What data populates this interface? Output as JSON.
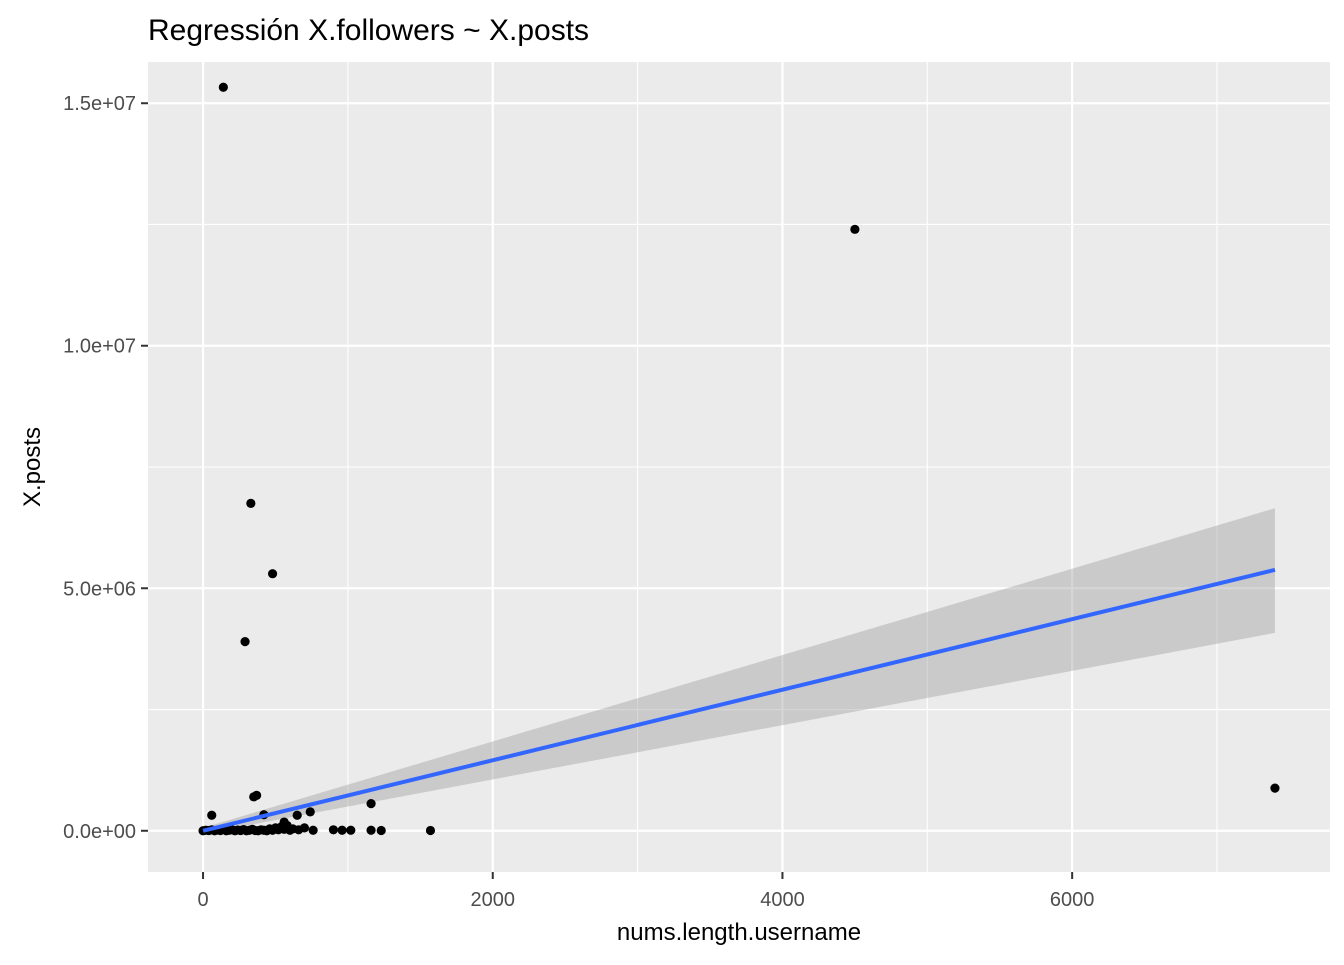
{
  "chart_data": {
    "type": "scatter",
    "title": "Regressión X.followers ~ X.posts",
    "xlabel": "nums.length.username",
    "ylabel": "X.posts",
    "xlim": [
      -380,
      7780
    ],
    "ylim": [
      -850000,
      15850000
    ],
    "x_ticks": [
      0,
      2000,
      4000,
      6000
    ],
    "x_tick_labels": [
      "0",
      "2000",
      "4000",
      "6000"
    ],
    "y_ticks": [
      0,
      5000000,
      10000000,
      15000000
    ],
    "y_tick_labels": [
      "0.0e+00",
      "5.0e+06",
      "1.0e+07",
      "1.5e+07"
    ],
    "grid": true,
    "points": [
      {
        "x": 140,
        "y": 15330000
      },
      {
        "x": 4500,
        "y": 12400000
      },
      {
        "x": 330,
        "y": 6750000
      },
      {
        "x": 480,
        "y": 5300000
      },
      {
        "x": 290,
        "y": 3900000
      },
      {
        "x": 7400,
        "y": 880000
      },
      {
        "x": 350,
        "y": 700000
      },
      {
        "x": 370,
        "y": 730000
      },
      {
        "x": 1160,
        "y": 560000
      },
      {
        "x": 60,
        "y": 320000
      },
      {
        "x": 420,
        "y": 330000
      },
      {
        "x": 650,
        "y": 320000
      },
      {
        "x": 740,
        "y": 390000
      },
      {
        "x": 560,
        "y": 180000
      },
      {
        "x": 0,
        "y": 0
      },
      {
        "x": 20,
        "y": 10000
      },
      {
        "x": 40,
        "y": 5000
      },
      {
        "x": 60,
        "y": 20000
      },
      {
        "x": 80,
        "y": 0
      },
      {
        "x": 100,
        "y": 15000
      },
      {
        "x": 120,
        "y": 5000
      },
      {
        "x": 140,
        "y": 30000
      },
      {
        "x": 160,
        "y": 0
      },
      {
        "x": 180,
        "y": 10000
      },
      {
        "x": 200,
        "y": 20000
      },
      {
        "x": 220,
        "y": 0
      },
      {
        "x": 240,
        "y": 15000
      },
      {
        "x": 260,
        "y": 5000
      },
      {
        "x": 280,
        "y": 25000
      },
      {
        "x": 300,
        "y": 0
      },
      {
        "x": 320,
        "y": 10000
      },
      {
        "x": 340,
        "y": 30000
      },
      {
        "x": 360,
        "y": 5000
      },
      {
        "x": 380,
        "y": 0
      },
      {
        "x": 400,
        "y": 20000
      },
      {
        "x": 420,
        "y": 10000
      },
      {
        "x": 440,
        "y": 0
      },
      {
        "x": 460,
        "y": 40000
      },
      {
        "x": 480,
        "y": 10000
      },
      {
        "x": 500,
        "y": 60000
      },
      {
        "x": 520,
        "y": 20000
      },
      {
        "x": 540,
        "y": 80000
      },
      {
        "x": 560,
        "y": 30000
      },
      {
        "x": 580,
        "y": 110000
      },
      {
        "x": 600,
        "y": 10000
      },
      {
        "x": 620,
        "y": 40000
      },
      {
        "x": 660,
        "y": 20000
      },
      {
        "x": 700,
        "y": 60000
      },
      {
        "x": 760,
        "y": 10000
      },
      {
        "x": 900,
        "y": 20000
      },
      {
        "x": 960,
        "y": 10000
      },
      {
        "x": 1020,
        "y": 10000
      },
      {
        "x": 1160,
        "y": 10000
      },
      {
        "x": 1230,
        "y": 5000
      },
      {
        "x": 1570,
        "y": 5000
      }
    ],
    "regression_line": {
      "x": [
        0,
        7400
      ],
      "y": [
        0,
        5380000
      ],
      "color": "#3366FF"
    },
    "confidence_band": {
      "x": [
        0,
        7400
      ],
      "lower": [
        -60000,
        4080000
      ],
      "upper": [
        60000,
        6650000
      ],
      "color": "#999999"
    },
    "panel_background": "#EBEBEB",
    "grid_color": "#FFFFFF",
    "point_color": "#000000"
  }
}
